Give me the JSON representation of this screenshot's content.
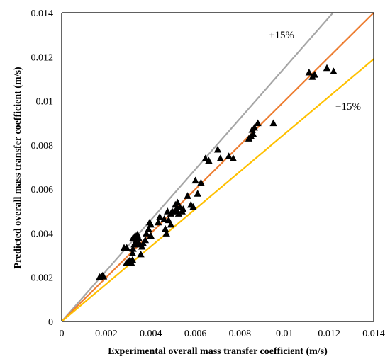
{
  "chart_data": {
    "type": "scatter",
    "xlabel": "Experimental overall mass transfer coefficient (m/s)",
    "ylabel": "Predicted overall mass transfer coefficient (m/s)",
    "xlim": [
      0,
      0.014
    ],
    "ylim": [
      0,
      0.014
    ],
    "x_ticks": [
      "0",
      "0.002",
      "0.004",
      "0.006",
      "0.008",
      "0.01",
      "0.012",
      "0.014"
    ],
    "y_ticks": [
      "0",
      "0.002",
      "0.004",
      "0.006",
      "0.008",
      "0.01",
      "0.012",
      "0.014"
    ],
    "grid": false,
    "marker": "triangle",
    "reference_lines": [
      {
        "label": "+15%",
        "slope": 1.15,
        "color": "#a6a6a6"
      },
      {
        "label": "",
        "slope": 1.0,
        "color": "#ed7d31"
      },
      {
        "label": "−15%",
        "slope": 0.85,
        "color": "#ffc000"
      }
    ],
    "points": [
      [
        0.0017,
        0.00202
      ],
      [
        0.00178,
        0.00206
      ],
      [
        0.00184,
        0.00209
      ],
      [
        0.00188,
        0.00205
      ],
      [
        0.0028,
        0.00335
      ],
      [
        0.00292,
        0.00335
      ],
      [
        0.0029,
        0.00265
      ],
      [
        0.00298,
        0.00272
      ],
      [
        0.00306,
        0.00278
      ],
      [
        0.00312,
        0.00268
      ],
      [
        0.00318,
        0.0028
      ],
      [
        0.00318,
        0.0031
      ],
      [
        0.0032,
        0.0033
      ],
      [
        0.00326,
        0.0035
      ],
      [
        0.0033,
        0.0036
      ],
      [
        0.0032,
        0.0038
      ],
      [
        0.0033,
        0.0039
      ],
      [
        0.0034,
        0.00395
      ],
      [
        0.00345,
        0.0038
      ],
      [
        0.0034,
        0.0035
      ],
      [
        0.00348,
        0.00355
      ],
      [
        0.00355,
        0.00305
      ],
      [
        0.0036,
        0.0034
      ],
      [
        0.00366,
        0.00355
      ],
      [
        0.00375,
        0.0037
      ],
      [
        0.0038,
        0.004
      ],
      [
        0.0039,
        0.0042
      ],
      [
        0.00395,
        0.0045
      ],
      [
        0.004,
        0.0044
      ],
      [
        0.004,
        0.0039
      ],
      [
        0.00433,
        0.0045
      ],
      [
        0.0044,
        0.00475
      ],
      [
        0.0046,
        0.00465
      ],
      [
        0.00465,
        0.0042
      ],
      [
        0.0047,
        0.004
      ],
      [
        0.00475,
        0.005
      ],
      [
        0.0048,
        0.0046
      ],
      [
        0.0049,
        0.0044
      ],
      [
        0.0049,
        0.0049
      ],
      [
        0.00496,
        0.005
      ],
      [
        0.00505,
        0.005
      ],
      [
        0.0051,
        0.0053
      ],
      [
        0.00515,
        0.0051
      ],
      [
        0.0052,
        0.0054
      ],
      [
        0.00525,
        0.0049
      ],
      [
        0.0053,
        0.0052
      ],
      [
        0.0054,
        0.005
      ],
      [
        0.00545,
        0.0051
      ],
      [
        0.00565,
        0.0057
      ],
      [
        0.0058,
        0.0053
      ],
      [
        0.0059,
        0.0052
      ],
      [
        0.006,
        0.0064
      ],
      [
        0.0061,
        0.0058
      ],
      [
        0.00625,
        0.0063
      ],
      [
        0.00645,
        0.0074
      ],
      [
        0.0066,
        0.0073
      ],
      [
        0.007,
        0.0078
      ],
      [
        0.00712,
        0.0074
      ],
      [
        0.0075,
        0.0075
      ],
      [
        0.0077,
        0.0074
      ],
      [
        0.0084,
        0.0083
      ],
      [
        0.0085,
        0.0084
      ],
      [
        0.00855,
        0.0087
      ],
      [
        0.0086,
        0.0085
      ],
      [
        0.00865,
        0.0088
      ],
      [
        0.0088,
        0.009
      ],
      [
        0.0095,
        0.009
      ],
      [
        0.0111,
        0.0113
      ],
      [
        0.01125,
        0.0111
      ],
      [
        0.01135,
        0.0112
      ],
      [
        0.0119,
        0.0115
      ],
      [
        0.0122,
        0.01135
      ]
    ]
  }
}
